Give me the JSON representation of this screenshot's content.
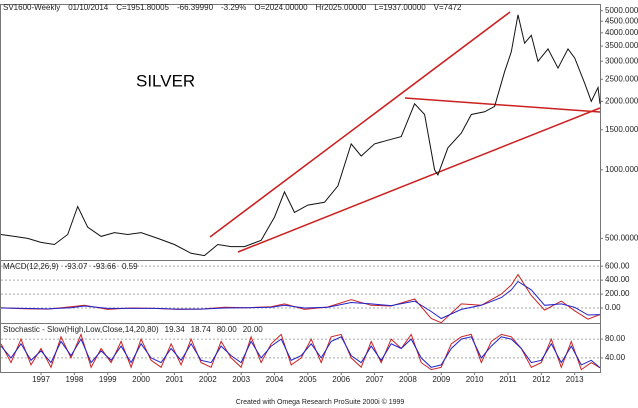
{
  "header": [
    {
      "text": "SV1600-Weekly",
      "color": "#222222"
    },
    {
      "text": "01/10/2014",
      "color": "#222222"
    },
    {
      "text": "C=1951.80005",
      "color": "#cc2222"
    },
    {
      "text": "-66.39990",
      "color": "#cc2222"
    },
    {
      "text": "-3.29%",
      "color": "#cc2222"
    },
    {
      "text": "O=2024.00000",
      "color": "#228822"
    },
    {
      "text": "Hr2025.00000",
      "color": "#222222"
    },
    {
      "text": "L=1937.00000",
      "color": "#222222"
    },
    {
      "text": "V=7472",
      "color": "#222222"
    }
  ],
  "footer": "Created with Omega Research ProSuite 2000i © 1999",
  "chart_data": [
    {
      "type": "line",
      "annotation": "SILVER",
      "log_scale": true,
      "grid": false,
      "xlim": [
        1995.8,
        2013.76
      ],
      "ylim": [
        410,
        5300
      ],
      "yticks": [
        {
          "value": 5000,
          "label": "5000.000"
        },
        {
          "value": 4500,
          "label": "4500.000"
        },
        {
          "value": 4000,
          "label": "4000.000"
        },
        {
          "value": 3500,
          "label": "3500.000"
        },
        {
          "value": 3000,
          "label": "3000.000"
        },
        {
          "value": 2500,
          "label": "2500.000"
        },
        {
          "value": 2000,
          "label": "2000.000"
        },
        {
          "value": 1500,
          "label": "1500.000"
        },
        {
          "value": 1000,
          "label": "1000.000"
        },
        {
          "value": 500,
          "label": "500.0000"
        }
      ],
      "x": [
        1995.8,
        1996.2,
        1996.6,
        1997.0,
        1997.4,
        1997.8,
        1998.1,
        1998.4,
        1998.8,
        1999.2,
        1999.6,
        2000.0,
        2000.5,
        2001.0,
        2001.5,
        2001.9,
        2002.3,
        2002.7,
        2003.1,
        2003.6,
        2004.0,
        2004.3,
        2004.6,
        2005.0,
        2005.5,
        2005.9,
        2006.3,
        2006.6,
        2007.0,
        2007.4,
        2007.8,
        2008.2,
        2008.5,
        2008.8,
        2008.9,
        2009.2,
        2009.6,
        2009.9,
        2010.3,
        2010.6,
        2010.9,
        2011.1,
        2011.3,
        2011.5,
        2011.7,
        2011.9,
        2012.2,
        2012.5,
        2012.8,
        2013.0,
        2013.3,
        2013.5,
        2013.7,
        2013.76
      ],
      "series": [
        {
          "color": "#111111",
          "values": [
            520,
            510,
            500,
            480,
            470,
            520,
            690,
            560,
            510,
            530,
            520,
            530,
            500,
            470,
            430,
            420,
            470,
            460,
            460,
            490,
            620,
            800,
            650,
            700,
            720,
            850,
            1300,
            1150,
            1300,
            1350,
            1400,
            1950,
            1750,
            1000,
            950,
            1250,
            1450,
            1750,
            1800,
            1900,
            2700,
            3300,
            4800,
            3600,
            3900,
            3000,
            3400,
            2800,
            3400,
            3100,
            2400,
            2000,
            2300,
            1950
          ]
        }
      ]
    },
    {
      "type": "line",
      "title": "MACD(12,26,9)",
      "readouts": [
        "-93.07",
        "-93.66",
        "0.59"
      ],
      "readout_colors": [
        "#cc2222",
        "#2222cc",
        "#2222cc"
      ],
      "xlim": [
        1995.8,
        2013.76
      ],
      "ylim": [
        -200,
        660
      ],
      "yticks": [
        {
          "value": 600,
          "label": "600.00"
        },
        {
          "value": 400,
          "label": "400.00"
        },
        {
          "value": 200,
          "label": "200.00"
        },
        {
          "value": 0,
          "label": "0.00"
        }
      ],
      "x": [
        1995.8,
        1996.5,
        1997.2,
        1997.9,
        1998.3,
        1999.0,
        1999.7,
        2000.4,
        2001.1,
        2001.8,
        2002.5,
        2003.2,
        2003.9,
        2004.3,
        2004.9,
        2005.6,
        2006.3,
        2006.9,
        2007.5,
        2008.2,
        2008.7,
        2009.0,
        2009.6,
        2010.2,
        2010.8,
        2011.1,
        2011.3,
        2011.7,
        2012.1,
        2012.6,
        2013.0,
        2013.4,
        2013.76
      ],
      "series": [
        {
          "color": "#cc2222",
          "values": [
            5,
            -10,
            -15,
            20,
            40,
            -20,
            0,
            -5,
            -20,
            -15,
            10,
            5,
            20,
            60,
            -20,
            15,
            120,
            40,
            30,
            130,
            -150,
            -210,
            60,
            40,
            200,
            330,
            480,
            180,
            -30,
            100,
            -40,
            -160,
            -93
          ]
        },
        {
          "color": "#2222cc",
          "values": [
            0,
            -5,
            -12,
            5,
            30,
            -5,
            -5,
            -5,
            -15,
            -15,
            0,
            5,
            10,
            40,
            0,
            10,
            80,
            60,
            35,
            100,
            -50,
            -150,
            -20,
            40,
            150,
            260,
            380,
            260,
            40,
            60,
            10,
            -100,
            -94
          ]
        }
      ]
    },
    {
      "type": "line",
      "title": "Stochastic - Slow(High,Low,Close,14,20,80)",
      "readouts": [
        "19.34",
        "18.74",
        "80.00",
        "20.00"
      ],
      "readout_colors": [
        "#cc2222",
        "#2222cc",
        "#222222",
        "#222222"
      ],
      "xlim": [
        1995.8,
        2013.76
      ],
      "ylim": [
        10,
        110
      ],
      "yticks": [
        {
          "value": 80,
          "label": "80.00"
        },
        {
          "value": 40,
          "label": "40.00"
        }
      ],
      "xticks": [
        1997,
        1998,
        1999,
        2000,
        2001,
        2002,
        2003,
        2004,
        2005,
        2006,
        2007,
        2008,
        2009,
        2010,
        2011,
        2012,
        2013
      ],
      "x": [
        1995.8,
        1996.1,
        1996.4,
        1996.7,
        1997.0,
        1997.3,
        1997.6,
        1997.9,
        1998.2,
        1998.5,
        1998.8,
        1999.1,
        1999.4,
        1999.7,
        2000.0,
        2000.3,
        2000.6,
        2000.9,
        2001.2,
        2001.5,
        2001.8,
        2002.1,
        2002.4,
        2002.7,
        2003.0,
        2003.3,
        2003.6,
        2003.9,
        2004.2,
        2004.5,
        2004.8,
        2005.1,
        2005.4,
        2005.7,
        2006.0,
        2006.3,
        2006.6,
        2006.9,
        2007.2,
        2007.5,
        2007.8,
        2008.1,
        2008.4,
        2008.7,
        2009.0,
        2009.3,
        2009.6,
        2009.9,
        2010.2,
        2010.5,
        2010.8,
        2011.1,
        2011.4,
        2011.7,
        2012.0,
        2012.3,
        2012.6,
        2012.9,
        2013.2,
        2013.5,
        2013.76
      ],
      "series": [
        {
          "color": "#cc2222",
          "values": [
            70,
            30,
            80,
            25,
            60,
            20,
            85,
            40,
            90,
            20,
            60,
            30,
            75,
            20,
            80,
            35,
            20,
            70,
            25,
            80,
            30,
            20,
            75,
            40,
            20,
            85,
            30,
            70,
            90,
            25,
            40,
            80,
            30,
            85,
            90,
            40,
            20,
            75,
            30,
            80,
            60,
            90,
            30,
            15,
            20,
            70,
            85,
            90,
            30,
            75,
            90,
            85,
            60,
            20,
            30,
            80,
            20,
            75,
            15,
            30,
            19
          ]
        },
        {
          "color": "#2222cc",
          "values": [
            65,
            40,
            70,
            35,
            55,
            30,
            75,
            45,
            80,
            30,
            55,
            35,
            65,
            30,
            70,
            40,
            30,
            60,
            35,
            70,
            35,
            30,
            65,
            45,
            30,
            75,
            40,
            65,
            80,
            35,
            45,
            70,
            40,
            75,
            85,
            45,
            30,
            65,
            35,
            70,
            60,
            80,
            40,
            20,
            25,
            60,
            80,
            85,
            40,
            65,
            85,
            80,
            60,
            30,
            35,
            70,
            30,
            65,
            25,
            35,
            19
          ]
        }
      ]
    }
  ]
}
